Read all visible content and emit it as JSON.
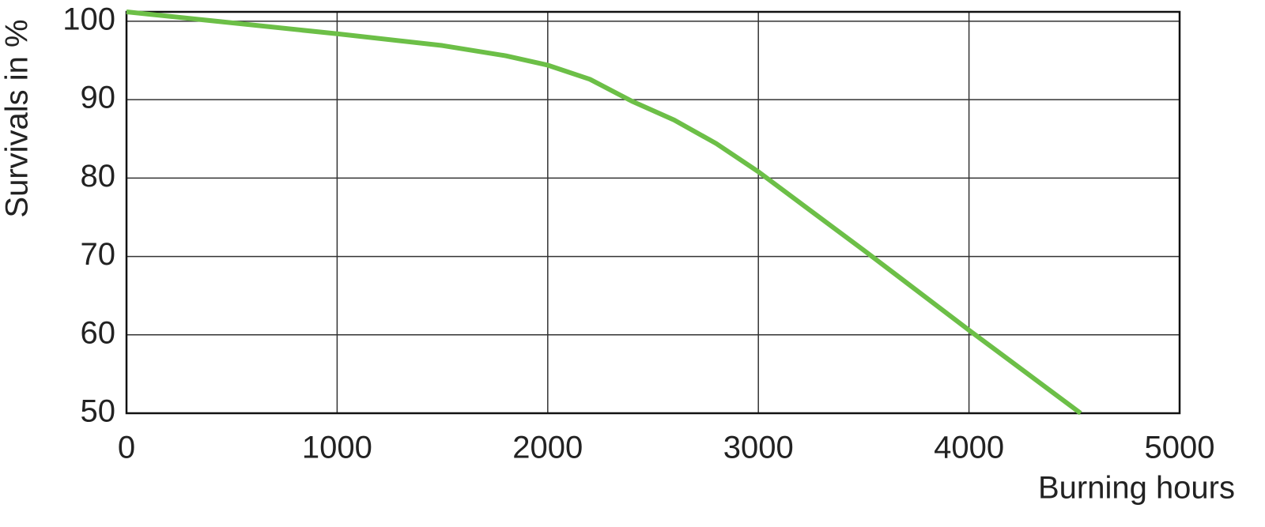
{
  "chart_data": {
    "type": "line",
    "x_label": "Burning hours",
    "y_label": "Survivals in %",
    "series": [
      {
        "name": "Survivals",
        "color": "#6cbf47",
        "x": [
          0,
          500,
          1000,
          1500,
          1800,
          2000,
          2200,
          2400,
          2600,
          2800,
          3000,
          3500,
          4000,
          4530
        ],
        "values": [
          101.2,
          99.8,
          98.4,
          96.9,
          95.6,
          94.4,
          92.6,
          89.8,
          87.4,
          84.4,
          80.8,
          70.8,
          60.6,
          50
        ]
      }
    ],
    "xlim": [
      0,
      5000
    ],
    "xticks": [
      0,
      1000,
      2000,
      3000,
      4000,
      5000
    ],
    "ylim": [
      50,
      101.2
    ],
    "yticks": [
      50,
      60,
      70,
      80,
      90,
      100
    ],
    "grid": true
  }
}
